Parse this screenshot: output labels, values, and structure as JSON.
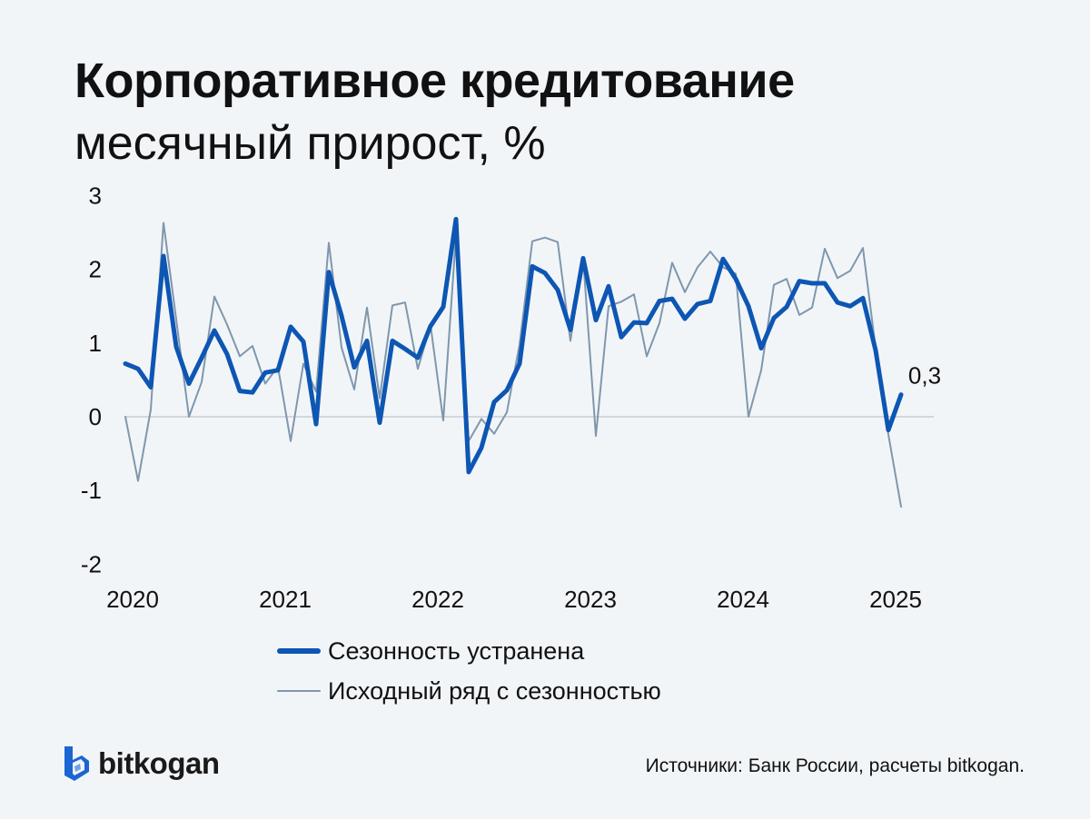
{
  "header": {
    "title": "Корпоративное кредитование",
    "subtitle": "месячный прирост, %"
  },
  "footer": {
    "logo_text": "bitkogan",
    "source": "Источники: Банк России, расчеты bitkogan."
  },
  "colors": {
    "background": "#f2f5f8",
    "seasonally_adjusted": "#0d56b3",
    "raw": "#7f97ad",
    "zero_line": "#c8cdd3",
    "logo_accent": "#1b66d2"
  },
  "chart_data": {
    "type": "line",
    "x_start": "2020-01",
    "x_tick_labels": [
      "2020",
      "2021",
      "2022",
      "2023",
      "2024",
      "2025"
    ],
    "y_tick_labels": [
      "3",
      "2",
      "1",
      "0",
      "-1",
      "-2"
    ],
    "ylim": [
      -2,
      3
    ],
    "grid": false,
    "legend_position": "bottom",
    "annotation": {
      "text": "0,3",
      "series_index": 0
    },
    "series": [
      {
        "name": "Сезонность устранена",
        "color": "#0d56b3",
        "values": [
          0.72,
          0.65,
          0.4,
          2.18,
          0.95,
          0.45,
          0.8,
          1.17,
          0.85,
          0.35,
          0.33,
          0.6,
          0.63,
          1.22,
          1.02,
          -0.1,
          1.96,
          1.37,
          0.67,
          1.03,
          -0.08,
          1.03,
          0.92,
          0.8,
          1.23,
          1.49,
          2.68,
          -0.75,
          -0.42,
          0.2,
          0.36,
          0.72,
          2.04,
          1.95,
          1.72,
          1.18,
          2.15,
          1.31,
          1.77,
          1.08,
          1.28,
          1.27,
          1.57,
          1.6,
          1.33,
          1.53,
          1.57,
          2.14,
          1.87,
          1.5,
          0.93,
          1.34,
          1.49,
          1.84,
          1.81,
          1.81,
          1.55,
          1.5,
          1.61,
          0.9,
          -0.18,
          0.3
        ]
      },
      {
        "name": "Исходный ряд с сезонностью",
        "color": "#7f97ad",
        "values": [
          0.0,
          -0.87,
          0.1,
          2.63,
          1.32,
          0.0,
          0.47,
          1.63,
          1.25,
          0.82,
          0.96,
          0.45,
          0.68,
          -0.33,
          0.72,
          0.34,
          2.36,
          0.94,
          0.37,
          1.48,
          0.25,
          1.51,
          1.55,
          0.65,
          1.24,
          -0.05,
          2.46,
          -0.33,
          -0.03,
          -0.23,
          0.06,
          0.98,
          2.38,
          2.43,
          2.37,
          1.03,
          2.15,
          -0.26,
          1.5,
          1.56,
          1.66,
          0.82,
          1.27,
          2.09,
          1.69,
          2.03,
          2.24,
          2.03,
          1.94,
          0.0,
          0.63,
          1.79,
          1.87,
          1.38,
          1.48,
          2.28,
          1.88,
          1.98,
          2.29,
          0.93,
          -0.24,
          -1.22
        ]
      }
    ]
  }
}
